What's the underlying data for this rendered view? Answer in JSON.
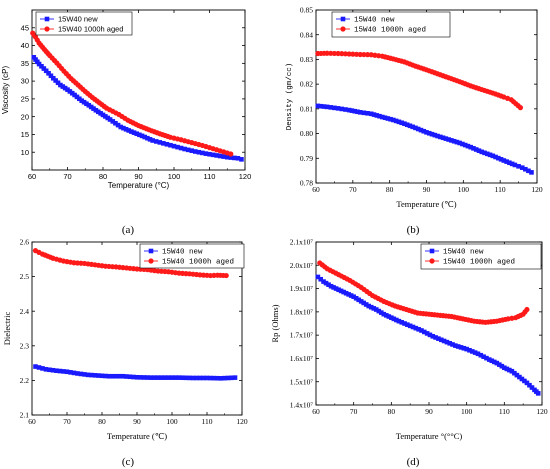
{
  "colors": {
    "new": "#1a1aff",
    "aged": "#ff1a1a"
  },
  "chart_data": [
    {
      "panel_label": "(a)",
      "type": "scatter",
      "xlabel": "Temperature (°C)",
      "ylabel": "Viscosity (cP)",
      "xlim": [
        60,
        120
      ],
      "ylim": [
        5,
        50
      ],
      "xticks": [
        60,
        70,
        80,
        90,
        100,
        110,
        120
      ],
      "yticks": [
        10,
        15,
        20,
        25,
        30,
        35,
        40,
        45
      ],
      "ytick_labels": [
        "10",
        "15",
        "20",
        "25",
        "30",
        "35",
        "40",
        "45"
      ],
      "legend_position": "top-left",
      "series": [
        {
          "name": "15W40 new",
          "marker": "square",
          "x": [
            60.5,
            62,
            64,
            66,
            68,
            70,
            72,
            74,
            76,
            78,
            80,
            82,
            85,
            88,
            91,
            94,
            97,
            100,
            103,
            106,
            109,
            112,
            115,
            118,
            119
          ],
          "y": [
            36.7,
            34.8,
            32.9,
            30.8,
            28.9,
            27.6,
            26.1,
            24.5,
            23.2,
            21.8,
            20.5,
            19.2,
            17.1,
            15.8,
            14.6,
            13.3,
            12.5,
            11.7,
            10.9,
            10.2,
            9.6,
            9.1,
            8.6,
            8.3,
            8.0
          ]
        },
        {
          "name": "15W40 1000h aged",
          "marker": "circle",
          "x": [
            60.2,
            61,
            62,
            63.5,
            65,
            67,
            69,
            71,
            73,
            75,
            77,
            79,
            81,
            84.5,
            87,
            90,
            93,
            96,
            99,
            102,
            105,
            108,
            111,
            114,
            116
          ],
          "y": [
            43.5,
            42.4,
            40.7,
            38.9,
            37.2,
            35.1,
            32.8,
            30.7,
            28.9,
            27.1,
            25.4,
            23.9,
            22.4,
            20.6,
            19.0,
            17.5,
            16.3,
            15.2,
            14.2,
            13.5,
            12.7,
            11.9,
            11.0,
            10.1,
            9.5
          ]
        }
      ]
    },
    {
      "panel_label": "(b)",
      "type": "scatter",
      "xlabel": "Temperature (℃)",
      "ylabel": "Density (gm/cc)",
      "xlim": [
        60,
        120
      ],
      "ylim": [
        0.78,
        0.85
      ],
      "xticks": [
        60,
        70,
        80,
        90,
        100,
        110,
        120
      ],
      "yticks": [
        0.78,
        0.79,
        0.8,
        0.81,
        0.82,
        0.83,
        0.84,
        0.85
      ],
      "ytick_labels": [
        "0.78",
        "0.79",
        "0.80",
        "0.81",
        "0.82",
        "0.83",
        "0.84",
        "0.85"
      ],
      "legend_position": "top-center",
      "series": [
        {
          "name": "15W40 new",
          "marker": "square",
          "x": [
            60.5,
            63,
            66,
            69,
            72,
            75,
            78,
            81,
            84,
            87,
            90,
            93,
            96,
            99,
            102,
            105,
            108,
            111,
            114,
            116,
            118.5
          ],
          "y": [
            0.8112,
            0.8108,
            0.8102,
            0.8095,
            0.8086,
            0.808,
            0.8067,
            0.8055,
            0.804,
            0.8023,
            0.8005,
            0.799,
            0.7976,
            0.7962,
            0.7945,
            0.7926,
            0.791,
            0.7891,
            0.7873,
            0.7862,
            0.7843
          ]
        },
        {
          "name": "15W40 1000h aged",
          "marker": "circle",
          "x": [
            60.5,
            63,
            66,
            69,
            72,
            75,
            78,
            81,
            84,
            87,
            90,
            93,
            96,
            99,
            102,
            105,
            108,
            111,
            113,
            115.5
          ],
          "y": [
            0.8324,
            0.8325,
            0.8324,
            0.8322,
            0.832,
            0.8319,
            0.8313,
            0.8302,
            0.829,
            0.8273,
            0.8258,
            0.8242,
            0.8226,
            0.821,
            0.8193,
            0.8178,
            0.8164,
            0.8148,
            0.8137,
            0.8105
          ]
        }
      ]
    },
    {
      "panel_label": "(c)",
      "type": "scatter",
      "xlabel": "Temperature (℃)",
      "ylabel": "Dielectric",
      "xlim": [
        60,
        120
      ],
      "ylim": [
        2.1,
        2.6
      ],
      "xticks": [
        60,
        70,
        80,
        90,
        100,
        110,
        120
      ],
      "yticks": [
        2.1,
        2.2,
        2.3,
        2.4,
        2.5,
        2.6
      ],
      "ytick_labels": [
        "2.1",
        "2.2",
        "2.3",
        "2.4",
        "2.5",
        "2.6"
      ],
      "legend_position": "top-right",
      "series": [
        {
          "name": "15W40 new",
          "marker": "square",
          "x": [
            61,
            64,
            67,
            70,
            73,
            76,
            79,
            82,
            86,
            90,
            94,
            98,
            102,
            106,
            110,
            114,
            118
          ],
          "y": [
            2.24,
            2.232,
            2.228,
            2.225,
            2.22,
            2.216,
            2.214,
            2.212,
            2.212,
            2.209,
            2.208,
            2.208,
            2.208,
            2.207,
            2.207,
            2.206,
            2.208
          ]
        },
        {
          "name": "15W40 1000h aged",
          "marker": "circle",
          "x": [
            61,
            63,
            66,
            69,
            72,
            75,
            78,
            81,
            84,
            87,
            90,
            93,
            96,
            99,
            102,
            105,
            108,
            111,
            113,
            115.5
          ],
          "y": [
            2.575,
            2.565,
            2.553,
            2.545,
            2.54,
            2.538,
            2.534,
            2.53,
            2.528,
            2.525,
            2.522,
            2.52,
            2.516,
            2.514,
            2.51,
            2.508,
            2.505,
            2.503,
            2.504,
            2.503
          ]
        }
      ]
    },
    {
      "panel_label": "(d)",
      "type": "scatter",
      "xlabel": "Temperature °(°°C)",
      "ylabel": "Rp (Ohms)",
      "xlim": [
        60,
        120
      ],
      "ylim": [
        14000000,
        21000000
      ],
      "xticks": [
        60,
        70,
        80,
        90,
        100,
        110,
        120
      ],
      "yticks": [
        14000000,
        15000000,
        16000000,
        17000000,
        18000000,
        19000000,
        20000000,
        21000000
      ],
      "ytick_labels": [
        "1.4x10⁷",
        "1.5x10⁷",
        "1.6x10⁷",
        "1.7x10⁷",
        "1.8x10⁷",
        "1.9x10⁷",
        "2.0x10⁷",
        "2.1x10⁷"
      ],
      "legend_position": "top-right",
      "series": [
        {
          "name": "15W40 new",
          "marker": "square",
          "x": [
            60.5,
            62,
            64,
            66,
            68,
            70,
            72,
            74,
            76,
            78,
            80,
            82,
            85,
            88,
            91,
            94,
            97,
            100,
            103,
            106,
            108,
            110,
            112,
            114,
            116,
            118,
            119
          ],
          "y": [
            19500000,
            19300000,
            19100000,
            18950000,
            18800000,
            18650000,
            18450000,
            18250000,
            18100000,
            17900000,
            17750000,
            17600000,
            17400000,
            17200000,
            16950000,
            16750000,
            16550000,
            16400000,
            16200000,
            15950000,
            15800000,
            15600000,
            15450000,
            15200000,
            14950000,
            14650000,
            14500000
          ]
        },
        {
          "name": "15W40 1000h aged",
          "marker": "circle",
          "x": [
            61,
            63,
            66,
            69,
            72,
            75,
            78,
            81,
            84,
            87,
            90,
            93,
            96,
            99,
            102,
            105,
            108,
            111,
            113,
            115,
            116
          ],
          "y": [
            20100000,
            19850000,
            19600000,
            19350000,
            19050000,
            18700000,
            18450000,
            18250000,
            18100000,
            17950000,
            17900000,
            17850000,
            17800000,
            17700000,
            17600000,
            17550000,
            17600000,
            17700000,
            17750000,
            17900000,
            18100000
          ]
        }
      ]
    }
  ]
}
